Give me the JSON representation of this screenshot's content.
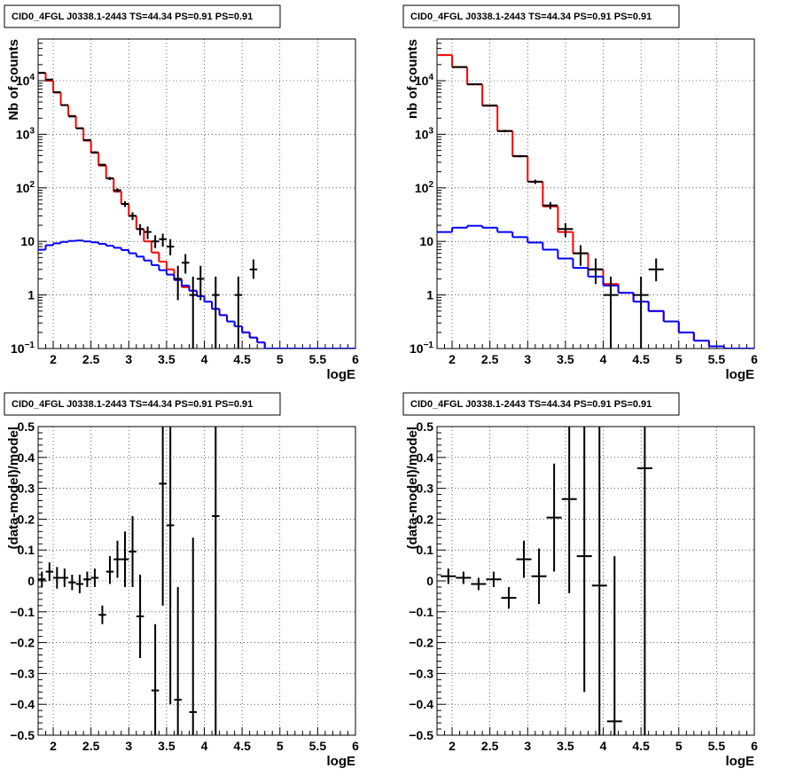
{
  "chart_data": [
    {
      "type": "line",
      "title": "CID0_4FGL J0338.1-2443 TS=44.34 PS=0.91 PS=0.91",
      "xlabel": "logE",
      "ylabel": "Nb of counts",
      "xlim": [
        1.8,
        6
      ],
      "ylim": [
        0.1,
        60000
      ],
      "y_scale": "log",
      "grid": true,
      "x_ticks": [
        "2",
        "2.5",
        "3",
        "3.5",
        "4",
        "4.5",
        "5",
        "5.5",
        "6"
      ],
      "y_ticks": [
        {
          "v": 0.1,
          "base": "10",
          "exp": "−1"
        },
        {
          "v": 1,
          "label": "1"
        },
        {
          "v": 10,
          "label": "10"
        },
        {
          "v": 100,
          "base": "10",
          "exp": "2"
        },
        {
          "v": 1000,
          "base": "10",
          "exp": "3"
        },
        {
          "v": 10000,
          "base": "10",
          "exp": "4"
        }
      ],
      "series": [
        {
          "color": "#ff0000",
          "style": "hist",
          "edges": [
            1.8,
            1.9,
            2.0,
            2.1,
            2.2,
            2.3,
            2.4,
            2.5,
            2.6,
            2.7,
            2.8,
            2.9,
            3.0,
            3.1,
            3.2,
            3.3,
            3.4,
            3.5,
            3.6,
            3.7,
            3.8,
            3.9,
            4.0,
            4.1,
            4.2,
            4.3,
            4.4,
            4.5,
            4.6,
            4.7,
            4.8,
            4.9,
            5.0,
            5.1,
            5.2,
            5.3,
            5.4,
            5.5,
            5.6,
            5.7,
            5.8,
            5.9,
            6.0
          ],
          "values": [
            14000,
            10000,
            6000,
            3500,
            2200,
            1300,
            760,
            450,
            260,
            150,
            85,
            50,
            30,
            17,
            10,
            6.2,
            4.2,
            3.0,
            2.0,
            1.4,
            1.2,
            0.95,
            0.75,
            0.55,
            0.42,
            0.32,
            0.26,
            0.2,
            0.16,
            0.13,
            0.1,
            0.09,
            0.09,
            0.09,
            0.09,
            0.09,
            0.09,
            0.09,
            0.09,
            0.09,
            0.09,
            0.09
          ]
        },
        {
          "color": "#0000ff",
          "style": "hist",
          "edges": [
            1.8,
            1.9,
            2.0,
            2.1,
            2.2,
            2.3,
            2.4,
            2.5,
            2.6,
            2.7,
            2.8,
            2.9,
            3.0,
            3.1,
            3.2,
            3.3,
            3.4,
            3.5,
            3.6,
            3.7,
            3.8,
            3.9,
            4.0,
            4.1,
            4.2,
            4.3,
            4.4,
            4.5,
            4.6,
            4.7,
            4.8,
            4.9,
            5.0,
            5.1,
            5.2,
            5.3,
            5.4,
            5.5,
            5.6,
            5.7,
            5.8,
            5.9,
            6.0
          ],
          "values": [
            7,
            8.5,
            9.2,
            9.8,
            10.2,
            10.4,
            10,
            9.6,
            9,
            8.3,
            7.6,
            6.9,
            6,
            5.2,
            4.4,
            3.6,
            2.9,
            2.4,
            1.9,
            1.5,
            1.2,
            0.95,
            0.75,
            0.55,
            0.42,
            0.32,
            0.26,
            0.2,
            0.16,
            0.13,
            0.1,
            0.09,
            0.09,
            0.09,
            0.09,
            0.09,
            0.09,
            0.09,
            0.09,
            0.09,
            0.09,
            0.09
          ]
        },
        {
          "color": "#000000",
          "style": "points",
          "x": [
            1.85,
            1.95,
            2.05,
            2.15,
            2.25,
            2.35,
            2.45,
            2.55,
            2.65,
            2.75,
            2.85,
            2.95,
            3.05,
            3.15,
            3.25,
            3.35,
            3.45,
            3.55,
            3.65,
            3.75,
            3.85,
            3.95,
            4.15,
            4.45,
            4.65
          ],
          "y": [
            14000,
            10500,
            6100,
            3500,
            2150,
            1290,
            780,
            460,
            270,
            150,
            90,
            50,
            30,
            17,
            15,
            10,
            11,
            8,
            2,
            4,
            1,
            2,
            1,
            1,
            3
          ],
          "xerr": 0.05,
          "ylo": [
            13800,
            10300,
            5950,
            3440,
            2100,
            1260,
            760,
            440,
            258,
            140,
            82,
            44,
            25,
            13,
            11,
            7.5,
            8,
            5.5,
            0.8,
            2.5,
            0.1,
            0.8,
            0.1,
            0.1,
            2
          ],
          "yhi": [
            14200,
            10700,
            6250,
            3560,
            2200,
            1320,
            800,
            480,
            282,
            160,
            98,
            56,
            35,
            21,
            19,
            13,
            14,
            11,
            3.5,
            5.8,
            2.2,
            3.5,
            2.2,
            2.2,
            4.6
          ]
        }
      ]
    },
    {
      "type": "line",
      "title": "CID0_4FGL J0338.1-2443 TS=44.34 PS=0.91 PS=0.91",
      "xlabel": "logE",
      "ylabel": "nb of counts",
      "xlim": [
        1.8,
        6
      ],
      "ylim": [
        0.1,
        60000
      ],
      "y_scale": "log",
      "grid": true,
      "x_ticks": [
        "2",
        "2.5",
        "3",
        "3.5",
        "4",
        "4.5",
        "5",
        "5.5",
        "6"
      ],
      "y_ticks": [
        {
          "v": 0.1,
          "base": "10",
          "exp": "−1"
        },
        {
          "v": 1,
          "label": "1"
        },
        {
          "v": 10,
          "label": "10"
        },
        {
          "v": 100,
          "base": "10",
          "exp": "2"
        },
        {
          "v": 1000,
          "base": "10",
          "exp": "3"
        },
        {
          "v": 10000,
          "base": "10",
          "exp": "4"
        }
      ],
      "series": [
        {
          "color": "#ff0000",
          "style": "hist",
          "edges": [
            1.8,
            2.0,
            2.2,
            2.4,
            2.6,
            2.8,
            3.0,
            3.2,
            3.4,
            3.6,
            3.8,
            4.0,
            4.2,
            4.4,
            4.6,
            4.8,
            5.0,
            5.2,
            5.4,
            5.6,
            5.8,
            6.0
          ],
          "values": [
            30000,
            18000,
            8500,
            3400,
            1150,
            390,
            130,
            45,
            15,
            6,
            3,
            1.6,
            1.1,
            0.75,
            0.5,
            0.32,
            0.2,
            0.14,
            0.11,
            0.09,
            0.09
          ]
        },
        {
          "color": "#0000ff",
          "style": "hist",
          "edges": [
            1.8,
            2.0,
            2.2,
            2.4,
            2.6,
            2.8,
            3.0,
            3.2,
            3.4,
            3.6,
            3.8,
            4.0,
            4.2,
            4.4,
            4.6,
            4.8,
            5.0,
            5.2,
            5.4,
            5.6,
            5.8,
            6.0
          ],
          "values": [
            15,
            18,
            19.5,
            18,
            15,
            12,
            9.5,
            7,
            4.8,
            3.2,
            2.2,
            1.5,
            1.1,
            0.75,
            0.5,
            0.32,
            0.2,
            0.14,
            0.11,
            0.09,
            0.09
          ]
        },
        {
          "color": "#000000",
          "style": "points",
          "x": [
            2.1,
            2.3,
            2.5,
            2.7,
            2.9,
            3.1,
            3.3,
            3.5,
            3.7,
            3.9,
            4.1,
            4.5,
            4.7
          ],
          "y": [
            18000,
            8600,
            3450,
            1150,
            390,
            130,
            47,
            17,
            6,
            3,
            1,
            1,
            3
          ],
          "xerr": 0.1,
          "ylo": [
            17700,
            8400,
            3350,
            1090,
            370,
            118,
            40,
            12,
            3.5,
            1.6,
            0.1,
            0.1,
            1.8
          ],
          "yhi": [
            18300,
            8800,
            3550,
            1210,
            410,
            142,
            54,
            22,
            8.5,
            4.8,
            2.2,
            2.2,
            4.8
          ]
        }
      ]
    },
    {
      "type": "scatter",
      "title": "CID0_4FGL J0338.1-2443 TS=44.34 PS=0.91 PS=0.91",
      "xlabel": "logE",
      "ylabel": "(data-model)/model",
      "xlim": [
        1.8,
        6
      ],
      "ylim": [
        -0.5,
        0.5
      ],
      "y_scale": "linear",
      "grid": true,
      "x_ticks": [
        "2",
        "2.5",
        "3",
        "3.5",
        "4",
        "4.5",
        "5",
        "5.5",
        "6"
      ],
      "y_ticks": [
        {
          "v": -0.5,
          "label": "−0.5"
        },
        {
          "v": -0.4,
          "label": "−0.4"
        },
        {
          "v": -0.3,
          "label": "−0.3"
        },
        {
          "v": -0.2,
          "label": "−0.2"
        },
        {
          "v": -0.1,
          "label": "−0.1"
        },
        {
          "v": 0,
          "label": "0"
        },
        {
          "v": 0.1,
          "label": "0.1"
        },
        {
          "v": 0.2,
          "label": "0.2"
        },
        {
          "v": 0.3,
          "label": "0.3"
        },
        {
          "v": 0.4,
          "label": "0.4"
        },
        {
          "v": 0.5,
          "label": "0.5"
        }
      ],
      "series": [
        {
          "color": "#000000",
          "style": "points",
          "x": [
            1.85,
            1.95,
            2.05,
            2.15,
            2.25,
            2.35,
            2.45,
            2.55,
            2.65,
            2.75,
            2.85,
            2.95,
            3.05,
            3.15,
            3.35,
            3.45,
            3.55,
            3.65,
            3.85,
            4.15
          ],
          "y": [
            0.005,
            0.03,
            0.01,
            0.01,
            -0.005,
            -0.01,
            0.005,
            0.01,
            -0.11,
            0.03,
            0.07,
            0.07,
            0.095,
            -0.115,
            -0.355,
            0.315,
            0.18,
            -0.385,
            -0.425,
            0.21
          ],
          "xerr": 0.05,
          "ylo": [
            -0.02,
            0,
            -0.025,
            -0.02,
            -0.03,
            -0.04,
            -0.02,
            -0.02,
            -0.14,
            -0.01,
            0.01,
            -0.02,
            -0.02,
            -0.25,
            -0.6,
            -0.08,
            -0.4,
            -0.6,
            -0.6,
            -0.6
          ],
          "yhi": [
            0.03,
            0.06,
            0.045,
            0.04,
            0.02,
            0.02,
            0.03,
            0.04,
            -0.08,
            0.08,
            0.13,
            0.16,
            0.21,
            0.02,
            -0.14,
            0.6,
            0.6,
            -0.02,
            0.14,
            0.6
          ]
        }
      ]
    },
    {
      "type": "scatter",
      "title": "CID0_4FGL J0338.1-2443 TS=44.34 PS=0.91 PS=0.91",
      "xlabel": "logE",
      "ylabel": "(data-model)/model",
      "xlim": [
        1.8,
        6
      ],
      "ylim": [
        -0.5,
        0.5
      ],
      "y_scale": "linear",
      "grid": true,
      "x_ticks": [
        "2",
        "2.5",
        "3",
        "3.5",
        "4",
        "4.5",
        "5",
        "5.5",
        "6"
      ],
      "y_ticks": [
        {
          "v": -0.5,
          "label": "−0.5"
        },
        {
          "v": -0.4,
          "label": "−0.4"
        },
        {
          "v": -0.3,
          "label": "−0.3"
        },
        {
          "v": -0.2,
          "label": "−0.2"
        },
        {
          "v": -0.1,
          "label": "−0.1"
        },
        {
          "v": 0,
          "label": "0"
        },
        {
          "v": 0.1,
          "label": "0.1"
        },
        {
          "v": 0.2,
          "label": "0.2"
        },
        {
          "v": 0.3,
          "label": "0.3"
        },
        {
          "v": 0.4,
          "label": "0.4"
        },
        {
          "v": 0.5,
          "label": "0.5"
        }
      ],
      "series": [
        {
          "color": "#000000",
          "style": "points",
          "x": [
            1.95,
            2.15,
            2.35,
            2.55,
            2.75,
            2.95,
            3.15,
            3.35,
            3.55,
            3.75,
            3.95,
            4.15,
            4.55
          ],
          "y": [
            0.015,
            0.01,
            -0.01,
            0.005,
            -0.055,
            0.07,
            0.015,
            0.205,
            0.265,
            0.08,
            -0.015,
            -0.455,
            0.365
          ],
          "xerr": 0.1,
          "ylo": [
            -0.01,
            -0.01,
            -0.03,
            -0.02,
            -0.09,
            0.01,
            -0.075,
            0.03,
            -0.04,
            -0.36,
            -0.6,
            -0.6,
            -0.6
          ],
          "yhi": [
            0.04,
            0.03,
            0.01,
            0.03,
            -0.02,
            0.13,
            0.105,
            0.38,
            0.57,
            0.6,
            0.6,
            0.08,
            0.6
          ]
        }
      ]
    }
  ]
}
